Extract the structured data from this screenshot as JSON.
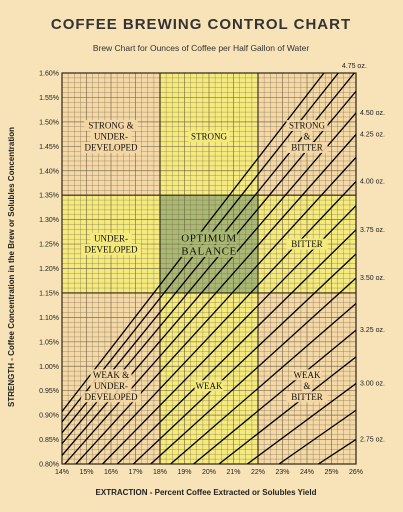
{
  "title": "COFFEE BREWING CONTROL CHART",
  "subtitle": "Brew Chart for Ounces of Coffee per Half Gallon of Water",
  "xlabel": "EXTRACTION  -  Percent Coffee Extracted or Solubles Yield",
  "ylabel": "STRENGTH  -  Coffee Concentration in the Brew or Solubles Concentration",
  "colors": {
    "background": "#f7e3b7",
    "plot_background": "#f4d8a6",
    "band": "#f5ea7d",
    "optimum": "#a9b872",
    "grid": "#6e6048",
    "grid_major": "#2c2418",
    "lines": "#000000"
  },
  "chart_data": {
    "type": "line",
    "xlim": [
      14,
      26
    ],
    "ylim": [
      0.8,
      1.6
    ],
    "x_ticks": [
      "14%",
      "15%",
      "16%",
      "17%",
      "18%",
      "19%",
      "20%",
      "21%",
      "22%",
      "23%",
      "24%",
      "25%",
      "26%"
    ],
    "y_ticks": [
      "0.80%",
      "0.85%",
      "0.90%",
      "0.95%",
      "1.00%",
      "1.05%",
      "1.10%",
      "1.15%",
      "1.20%",
      "1.25%",
      "1.30%",
      "1.35%",
      "1.40%",
      "1.45%",
      "1.50%",
      "1.55%",
      "1.60%"
    ],
    "grid": true,
    "extraction_band": [
      18,
      22
    ],
    "strength_band": [
      1.15,
      1.35
    ],
    "dose_lines": [
      {
        "label": "",
        "slope": 0.0648
      },
      {
        "label": "",
        "slope": 0.0633
      },
      {
        "label": "4.75 oz.",
        "slope": 0.0617
      },
      {
        "label": "",
        "slope": 0.0601
      },
      {
        "label": "4.50 oz.",
        "slope": 0.0584
      },
      {
        "label": "4.25 oz.",
        "slope": 0.0567
      },
      {
        "label": "",
        "slope": 0.0549
      },
      {
        "label": "4.00 oz.",
        "slope": 0.053
      },
      {
        "label": "",
        "slope": 0.0511
      },
      {
        "label": "3.75 oz.",
        "slope": 0.0492
      },
      {
        "label": "",
        "slope": 0.0473
      },
      {
        "label": "3.50 oz.",
        "slope": 0.0454
      },
      {
        "label": "",
        "slope": 0.0434
      },
      {
        "label": "3.25 oz.",
        "slope": 0.0413
      },
      {
        "label": "",
        "slope": 0.0392
      },
      {
        "label": "3.00 oz.",
        "slope": 0.0371
      },
      {
        "label": "",
        "slope": 0.035
      },
      {
        "label": "2.75 oz.",
        "slope": 0.0327
      }
    ],
    "regions": [
      {
        "lines": [
          "STRONG &",
          "UNDER-",
          "DEVELOPED"
        ],
        "x": 16,
        "y": 1.47,
        "big": false
      },
      {
        "lines": [
          "STRONG"
        ],
        "x": 20,
        "y": 1.47,
        "big": false
      },
      {
        "lines": [
          "STRONG",
          "&",
          "BITTER"
        ],
        "x": 24,
        "y": 1.47,
        "big": false
      },
      {
        "lines": [
          "UNDER-",
          "DEVELOPED"
        ],
        "x": 16,
        "y": 1.25,
        "big": false
      },
      {
        "lines": [
          "OPTIMUM",
          "BALANCE"
        ],
        "x": 20,
        "y": 1.25,
        "big": true
      },
      {
        "lines": [
          "BITTER"
        ],
        "x": 24,
        "y": 1.25,
        "big": false
      },
      {
        "lines": [
          "WEAK &",
          "UNDER-",
          "DEVELOPED"
        ],
        "x": 16,
        "y": 0.96,
        "big": false
      },
      {
        "lines": [
          "WEAK"
        ],
        "x": 20,
        "y": 0.96,
        "big": false
      },
      {
        "lines": [
          "WEAK",
          "&",
          "BITTER"
        ],
        "x": 24,
        "y": 0.96,
        "big": false
      }
    ]
  }
}
